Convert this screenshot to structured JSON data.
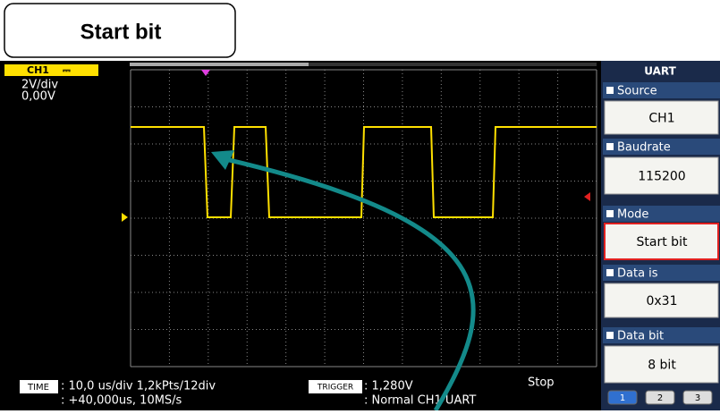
{
  "callout": {
    "title": "Start bit"
  },
  "channel": {
    "name": "CH1",
    "scale": "2V/div",
    "offset": "0,00V"
  },
  "status": {
    "time_label": "TIME",
    "time_line1": ": 10,0 us/div 1,2kPts/12div",
    "time_line2": ": +40,000us, 10MS/s",
    "trigger_label": "TRIGGER",
    "trigger_line1": ": 1,280V",
    "trigger_line2": ": Normal CH1 UART",
    "state": "Stop"
  },
  "menu": {
    "title": "UART",
    "items": [
      {
        "label": "Source",
        "value": "CH1"
      },
      {
        "label": "Baudrate",
        "value": "115200"
      },
      {
        "label": "Mode",
        "value": "Start bit"
      },
      {
        "label": "Data is",
        "value": "0x31"
      },
      {
        "label": "Data bit",
        "value": "8 bit"
      }
    ],
    "pages": [
      "1",
      "2",
      "3"
    ]
  }
}
